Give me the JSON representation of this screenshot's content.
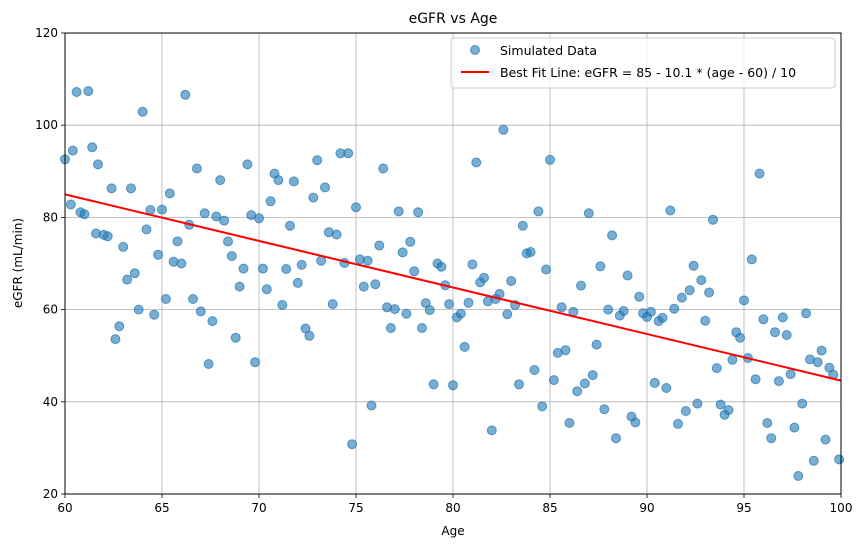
{
  "chart_data": {
    "type": "scatter",
    "title": "eGFR vs Age",
    "xlabel": "Age",
    "ylabel": "eGFR (mL/min)",
    "xlim": [
      60,
      100
    ],
    "ylim": [
      20,
      120
    ],
    "xticks": [
      60,
      65,
      70,
      75,
      80,
      85,
      90,
      95,
      100
    ],
    "yticks": [
      20,
      40,
      60,
      80,
      100,
      120
    ],
    "grid": true,
    "legend_position": "top-right",
    "series": [
      {
        "name": "Simulated Data",
        "kind": "scatter",
        "color": "#1f77b4",
        "points": [
          [
            60.0,
            92.6
          ],
          [
            60.3,
            82.8
          ],
          [
            60.4,
            94.5
          ],
          [
            60.6,
            107.2
          ],
          [
            60.8,
            81.1
          ],
          [
            61.0,
            80.7
          ],
          [
            61.2,
            107.4
          ],
          [
            61.4,
            95.2
          ],
          [
            61.6,
            76.5
          ],
          [
            61.7,
            91.5
          ],
          [
            62.0,
            76.2
          ],
          [
            62.2,
            75.9
          ],
          [
            62.4,
            86.3
          ],
          [
            62.6,
            53.6
          ],
          [
            62.8,
            56.4
          ],
          [
            63.0,
            73.6
          ],
          [
            63.2,
            66.5
          ],
          [
            63.4,
            86.3
          ],
          [
            63.6,
            67.9
          ],
          [
            63.8,
            60.0
          ],
          [
            64.0,
            102.9
          ],
          [
            64.2,
            77.4
          ],
          [
            64.4,
            81.6
          ],
          [
            64.6,
            58.9
          ],
          [
            64.8,
            71.9
          ],
          [
            65.0,
            81.7
          ],
          [
            65.2,
            62.3
          ],
          [
            65.4,
            85.2
          ],
          [
            65.6,
            70.4
          ],
          [
            65.8,
            74.8
          ],
          [
            66.0,
            70.0
          ],
          [
            66.2,
            106.6
          ],
          [
            66.4,
            78.4
          ],
          [
            66.6,
            62.3
          ],
          [
            66.8,
            90.6
          ],
          [
            67.0,
            59.6
          ],
          [
            67.2,
            80.9
          ],
          [
            67.4,
            48.2
          ],
          [
            67.6,
            57.5
          ],
          [
            67.8,
            80.2
          ],
          [
            68.0,
            88.1
          ],
          [
            68.2,
            79.3
          ],
          [
            68.4,
            74.8
          ],
          [
            68.6,
            71.6
          ],
          [
            68.8,
            53.9
          ],
          [
            69.0,
            65.0
          ],
          [
            69.2,
            68.9
          ],
          [
            69.4,
            91.5
          ],
          [
            69.6,
            80.5
          ],
          [
            69.8,
            48.6
          ],
          [
            70.0,
            79.8
          ],
          [
            70.2,
            68.9
          ],
          [
            70.4,
            64.4
          ],
          [
            70.6,
            83.5
          ],
          [
            70.8,
            89.5
          ],
          [
            71.0,
            88.1
          ],
          [
            71.2,
            61.0
          ],
          [
            71.4,
            68.8
          ],
          [
            71.6,
            78.2
          ],
          [
            71.8,
            87.8
          ],
          [
            72.0,
            65.8
          ],
          [
            72.2,
            69.7
          ],
          [
            72.4,
            55.9
          ],
          [
            72.6,
            54.3
          ],
          [
            72.8,
            84.3
          ],
          [
            73.0,
            92.4
          ],
          [
            73.2,
            70.6
          ],
          [
            73.4,
            86.5
          ],
          [
            73.6,
            76.8
          ],
          [
            73.8,
            61.2
          ],
          [
            74.0,
            76.3
          ],
          [
            74.2,
            93.9
          ],
          [
            74.4,
            70.1
          ],
          [
            74.6,
            93.9
          ],
          [
            74.8,
            30.8
          ],
          [
            75.0,
            82.2
          ],
          [
            75.2,
            70.9
          ],
          [
            75.4,
            65.0
          ],
          [
            75.6,
            70.6
          ],
          [
            75.8,
            39.2
          ],
          [
            76.0,
            65.5
          ],
          [
            76.2,
            73.9
          ],
          [
            76.4,
            90.6
          ],
          [
            76.6,
            60.5
          ],
          [
            76.8,
            56.0
          ],
          [
            77.0,
            60.1
          ],
          [
            77.2,
            81.3
          ],
          [
            77.4,
            72.4
          ],
          [
            77.6,
            59.1
          ],
          [
            77.8,
            74.7
          ],
          [
            78.0,
            68.3
          ],
          [
            78.2,
            81.1
          ],
          [
            78.4,
            56.0
          ],
          [
            78.6,
            61.4
          ],
          [
            78.8,
            59.9
          ],
          [
            79.0,
            43.8
          ],
          [
            79.2,
            70.0
          ],
          [
            79.4,
            69.3
          ],
          [
            79.6,
            65.3
          ],
          [
            79.8,
            61.2
          ],
          [
            80.0,
            43.6
          ],
          [
            80.2,
            58.3
          ],
          [
            80.4,
            59.1
          ],
          [
            80.6,
            51.9
          ],
          [
            80.8,
            61.5
          ],
          [
            81.0,
            69.8
          ],
          [
            81.2,
            91.9
          ],
          [
            81.4,
            65.9
          ],
          [
            81.6,
            66.9
          ],
          [
            81.8,
            61.8
          ],
          [
            82.0,
            33.8
          ],
          [
            82.2,
            62.3
          ],
          [
            82.4,
            63.4
          ],
          [
            82.6,
            99.0
          ],
          [
            82.8,
            59.0
          ],
          [
            83.0,
            66.2
          ],
          [
            83.2,
            61.0
          ],
          [
            83.4,
            43.8
          ],
          [
            83.6,
            78.2
          ],
          [
            83.8,
            72.2
          ],
          [
            84.0,
            72.5
          ],
          [
            84.2,
            46.9
          ],
          [
            84.4,
            81.3
          ],
          [
            84.6,
            39.0
          ],
          [
            84.8,
            68.7
          ],
          [
            85.0,
            92.5
          ],
          [
            85.2,
            44.7
          ],
          [
            85.4,
            50.6
          ],
          [
            85.6,
            60.5
          ],
          [
            85.8,
            51.2
          ],
          [
            86.0,
            35.4
          ],
          [
            86.2,
            59.5
          ],
          [
            86.4,
            42.3
          ],
          [
            86.6,
            65.2
          ],
          [
            86.8,
            44.0
          ],
          [
            87.0,
            80.9
          ],
          [
            87.2,
            45.8
          ],
          [
            87.4,
            52.4
          ],
          [
            87.6,
            69.4
          ],
          [
            87.8,
            38.4
          ],
          [
            88.0,
            60.0
          ],
          [
            88.2,
            76.1
          ],
          [
            88.4,
            32.1
          ],
          [
            88.6,
            58.7
          ],
          [
            88.8,
            59.7
          ],
          [
            89.0,
            67.4
          ],
          [
            89.2,
            36.8
          ],
          [
            89.4,
            35.5
          ],
          [
            89.6,
            62.8
          ],
          [
            89.8,
            59.2
          ],
          [
            90.0,
            58.4
          ],
          [
            90.2,
            59.5
          ],
          [
            90.4,
            44.1
          ],
          [
            90.6,
            57.5
          ],
          [
            90.8,
            58.2
          ],
          [
            91.0,
            43.0
          ],
          [
            91.2,
            81.5
          ],
          [
            91.4,
            60.2
          ],
          [
            91.6,
            35.2
          ],
          [
            91.8,
            62.6
          ],
          [
            92.0,
            38.0
          ],
          [
            92.2,
            64.2
          ],
          [
            92.4,
            69.5
          ],
          [
            92.6,
            39.6
          ],
          [
            92.8,
            66.4
          ],
          [
            93.0,
            57.6
          ],
          [
            93.2,
            63.7
          ],
          [
            93.4,
            79.5
          ],
          [
            93.6,
            47.3
          ],
          [
            93.8,
            39.4
          ],
          [
            94.0,
            37.2
          ],
          [
            94.2,
            38.2
          ],
          [
            94.4,
            49.1
          ],
          [
            94.6,
            55.1
          ],
          [
            94.8,
            53.9
          ],
          [
            95.0,
            62.0
          ],
          [
            95.2,
            49.5
          ],
          [
            95.4,
            70.9
          ],
          [
            95.6,
            44.9
          ],
          [
            95.8,
            89.5
          ],
          [
            96.0,
            57.9
          ],
          [
            96.2,
            35.4
          ],
          [
            96.4,
            32.1
          ],
          [
            96.6,
            55.1
          ],
          [
            96.8,
            44.5
          ],
          [
            97.0,
            58.3
          ],
          [
            97.2,
            54.5
          ],
          [
            97.4,
            46.0
          ],
          [
            97.6,
            34.4
          ],
          [
            97.8,
            23.9
          ],
          [
            98.0,
            39.6
          ],
          [
            98.2,
            59.2
          ],
          [
            98.4,
            49.2
          ],
          [
            98.6,
            27.2
          ],
          [
            98.8,
            48.6
          ],
          [
            99.0,
            51.1
          ],
          [
            99.2,
            31.8
          ],
          [
            99.4,
            47.4
          ],
          [
            99.6,
            45.9
          ],
          [
            99.9,
            27.5
          ]
        ]
      },
      {
        "name": "Best Fit Line: eGFR = 85 - 10.1 * (age - 60) / 10",
        "kind": "line",
        "color": "#ff0000",
        "points": [
          [
            60,
            85.0
          ],
          [
            100,
            44.6
          ]
        ]
      }
    ]
  }
}
